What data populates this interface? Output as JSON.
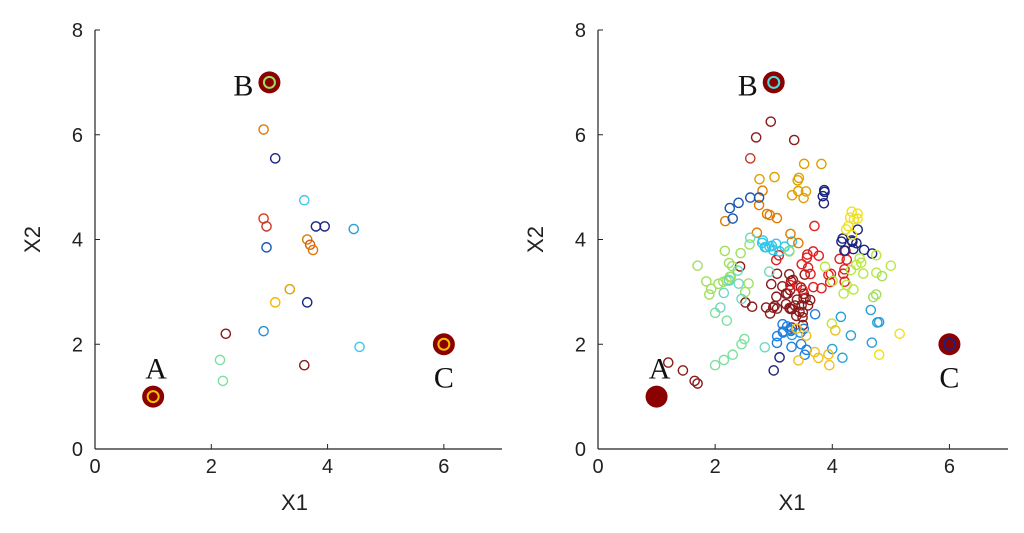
{
  "chart_data": [
    {
      "type": "scatter",
      "title": "",
      "xlabel": "X1",
      "ylabel": "X2",
      "xlim": [
        0,
        7
      ],
      "ylim": [
        0,
        8
      ],
      "xticks": [
        "0",
        "2",
        "4",
        "6"
      ],
      "yticks": [
        "0",
        "2",
        "4",
        "6",
        "8"
      ],
      "grid": false,
      "anchors": [
        {
          "label": "A",
          "x": 1,
          "y": 1,
          "color": "#8b0000",
          "inner": "#f5c000"
        },
        {
          "label": "B",
          "x": 3,
          "y": 7,
          "color": "#8b0000",
          "inner": "#9be05a"
        },
        {
          "label": "C",
          "x": 6,
          "y": 2,
          "color": "#8b0000",
          "inner": "#f5c000"
        }
      ],
      "points": [
        {
          "x": 2.9,
          "y": 6.1,
          "color": "#e07b00"
        },
        {
          "x": 3.1,
          "y": 5.55,
          "color": "#1a237e"
        },
        {
          "x": 3.6,
          "y": 4.75,
          "color": "#40c8f0"
        },
        {
          "x": 2.9,
          "y": 4.4,
          "color": "#d63b1f"
        },
        {
          "x": 2.95,
          "y": 4.25,
          "color": "#c0392b"
        },
        {
          "x": 3.8,
          "y": 4.25,
          "color": "#1a237e"
        },
        {
          "x": 3.95,
          "y": 4.25,
          "color": "#1a237e"
        },
        {
          "x": 4.45,
          "y": 4.2,
          "color": "#2aa0d8"
        },
        {
          "x": 3.65,
          "y": 4.0,
          "color": "#e07b00"
        },
        {
          "x": 3.7,
          "y": 3.9,
          "color": "#d65a1a"
        },
        {
          "x": 3.75,
          "y": 3.8,
          "color": "#e07b00"
        },
        {
          "x": 2.95,
          "y": 3.85,
          "color": "#1a56b0"
        },
        {
          "x": 3.35,
          "y": 3.05,
          "color": "#e0a000"
        },
        {
          "x": 3.1,
          "y": 2.8,
          "color": "#f5b800"
        },
        {
          "x": 3.65,
          "y": 2.8,
          "color": "#1a237e"
        },
        {
          "x": 2.9,
          "y": 2.25,
          "color": "#2a8fd8"
        },
        {
          "x": 2.25,
          "y": 2.2,
          "color": "#8b1a1a"
        },
        {
          "x": 4.55,
          "y": 1.95,
          "color": "#40c8f0"
        },
        {
          "x": 2.15,
          "y": 1.7,
          "color": "#7ee0a0"
        },
        {
          "x": 3.6,
          "y": 1.6,
          "color": "#8b1a1a"
        },
        {
          "x": 2.2,
          "y": 1.3,
          "color": "#7ee0a0"
        }
      ]
    },
    {
      "type": "scatter",
      "title": "",
      "xlabel": "X1",
      "ylabel": "X2",
      "xlim": [
        0,
        7
      ],
      "ylim": [
        0,
        8
      ],
      "xticks": [
        "0",
        "2",
        "4",
        "6"
      ],
      "yticks": [
        "0",
        "2",
        "4",
        "6",
        "8"
      ],
      "grid": false,
      "anchors": [
        {
          "label": "A",
          "x": 1,
          "y": 1,
          "color": "#8b0000",
          "inner": "#8b0000"
        },
        {
          "label": "B",
          "x": 3,
          "y": 7,
          "color": "#8b0000",
          "inner": "#40e0e0"
        },
        {
          "label": "C",
          "x": 6,
          "y": 2,
          "color": "#8b0000",
          "inner": "#1a237e"
        }
      ],
      "seed": 20240611,
      "clusters": [
        {
          "cx": 3.2,
          "cy": 2.9,
          "sx": 0.32,
          "sy": 0.3,
          "n": 38,
          "color": "#8b1a1a"
        },
        {
          "cx": 3.7,
          "cy": 3.5,
          "sx": 0.28,
          "sy": 0.3,
          "n": 24,
          "color": "#e02020"
        },
        {
          "cx": 3.3,
          "cy": 2.15,
          "sx": 0.2,
          "sy": 0.25,
          "n": 16,
          "color": "#2080e0"
        },
        {
          "cx": 3.05,
          "cy": 3.85,
          "sx": 0.2,
          "sy": 0.1,
          "n": 12,
          "color": "#30c8e8"
        },
        {
          "cx": 4.35,
          "cy": 3.95,
          "sx": 0.18,
          "sy": 0.12,
          "n": 10,
          "color": "#1a237e"
        },
        {
          "cx": 4.3,
          "cy": 4.4,
          "sx": 0.15,
          "sy": 0.15,
          "n": 8,
          "color": "#f0e020"
        },
        {
          "cx": 3.3,
          "cy": 5.1,
          "sx": 0.25,
          "sy": 0.22,
          "n": 10,
          "color": "#e0a000"
        },
        {
          "cx": 2.9,
          "cy": 4.4,
          "sx": 0.3,
          "sy": 0.4,
          "n": 9,
          "color": "#e07b00"
        },
        {
          "cx": 2.3,
          "cy": 3.5,
          "sx": 0.3,
          "sy": 0.35,
          "n": 14,
          "color": "#a0e060"
        },
        {
          "cx": 2.6,
          "cy": 3.0,
          "sx": 0.3,
          "sy": 0.4,
          "n": 10,
          "color": "#70d8c0"
        },
        {
          "cx": 4.4,
          "cy": 3.3,
          "sx": 0.35,
          "sy": 0.35,
          "n": 12,
          "color": "#b8e840"
        },
        {
          "cx": 4.3,
          "cy": 2.3,
          "sx": 0.35,
          "sy": 0.3,
          "n": 9,
          "color": "#2aa0d8"
        },
        {
          "cx": 3.6,
          "cy": 2.0,
          "sx": 0.3,
          "sy": 0.25,
          "n": 6,
          "color": "#f0c020"
        },
        {
          "cx": 3.9,
          "cy": 5.0,
          "sx": 0.12,
          "sy": 0.2,
          "n": 4,
          "color": "#1a237e"
        }
      ],
      "extra_points": [
        {
          "x": 2.95,
          "y": 6.25,
          "color": "#8b1a1a"
        },
        {
          "x": 2.7,
          "y": 5.95,
          "color": "#8b1a1a"
        },
        {
          "x": 3.35,
          "y": 5.9,
          "color": "#8b1a1a"
        },
        {
          "x": 2.6,
          "y": 5.55,
          "color": "#c0392b"
        },
        {
          "x": 3.0,
          "y": 6.95,
          "color": "#40e0e0"
        },
        {
          "x": 2.6,
          "y": 4.8,
          "color": "#1a56b0"
        },
        {
          "x": 2.75,
          "y": 4.8,
          "color": "#1a56b0"
        },
        {
          "x": 2.4,
          "y": 4.7,
          "color": "#1a56b0"
        },
        {
          "x": 2.25,
          "y": 4.6,
          "color": "#1a56b0"
        },
        {
          "x": 2.3,
          "y": 4.4,
          "color": "#1a56b0"
        },
        {
          "x": 1.2,
          "y": 1.65,
          "color": "#8b1a1a"
        },
        {
          "x": 1.45,
          "y": 1.5,
          "color": "#8b1a1a"
        },
        {
          "x": 1.65,
          "y": 1.3,
          "color": "#8b1a1a"
        },
        {
          "x": 1.7,
          "y": 1.25,
          "color": "#8b1a1a"
        },
        {
          "x": 2.0,
          "y": 1.6,
          "color": "#7ee0a0"
        },
        {
          "x": 2.15,
          "y": 1.7,
          "color": "#7ee0a0"
        },
        {
          "x": 2.3,
          "y": 1.8,
          "color": "#7ee0a0"
        },
        {
          "x": 2.45,
          "y": 2.0,
          "color": "#7ee0a0"
        },
        {
          "x": 2.5,
          "y": 2.1,
          "color": "#7ee0a0"
        },
        {
          "x": 2.0,
          "y": 2.6,
          "color": "#7ee0a0"
        },
        {
          "x": 2.2,
          "y": 2.45,
          "color": "#7ee0a0"
        },
        {
          "x": 3.0,
          "y": 1.5,
          "color": "#1a237e"
        },
        {
          "x": 3.1,
          "y": 1.75,
          "color": "#1a237e"
        },
        {
          "x": 3.7,
          "y": 1.85,
          "color": "#f0c020"
        },
        {
          "x": 3.95,
          "y": 1.6,
          "color": "#f0c020"
        },
        {
          "x": 4.8,
          "y": 1.8,
          "color": "#f0e020"
        },
        {
          "x": 5.15,
          "y": 2.2,
          "color": "#f0e020"
        },
        {
          "x": 5.0,
          "y": 3.5,
          "color": "#b8e840"
        },
        {
          "x": 4.75,
          "y": 3.7,
          "color": "#b8e840"
        },
        {
          "x": 4.7,
          "y": 2.9,
          "color": "#a0e060"
        },
        {
          "x": 4.75,
          "y": 2.95,
          "color": "#a0e060"
        },
        {
          "x": 4.85,
          "y": 3.3,
          "color": "#a0e060"
        },
        {
          "x": 1.7,
          "y": 3.5,
          "color": "#a0e060"
        },
        {
          "x": 1.85,
          "y": 3.2,
          "color": "#a0e060"
        },
        {
          "x": 1.9,
          "y": 2.95,
          "color": "#a0e060"
        }
      ]
    }
  ]
}
